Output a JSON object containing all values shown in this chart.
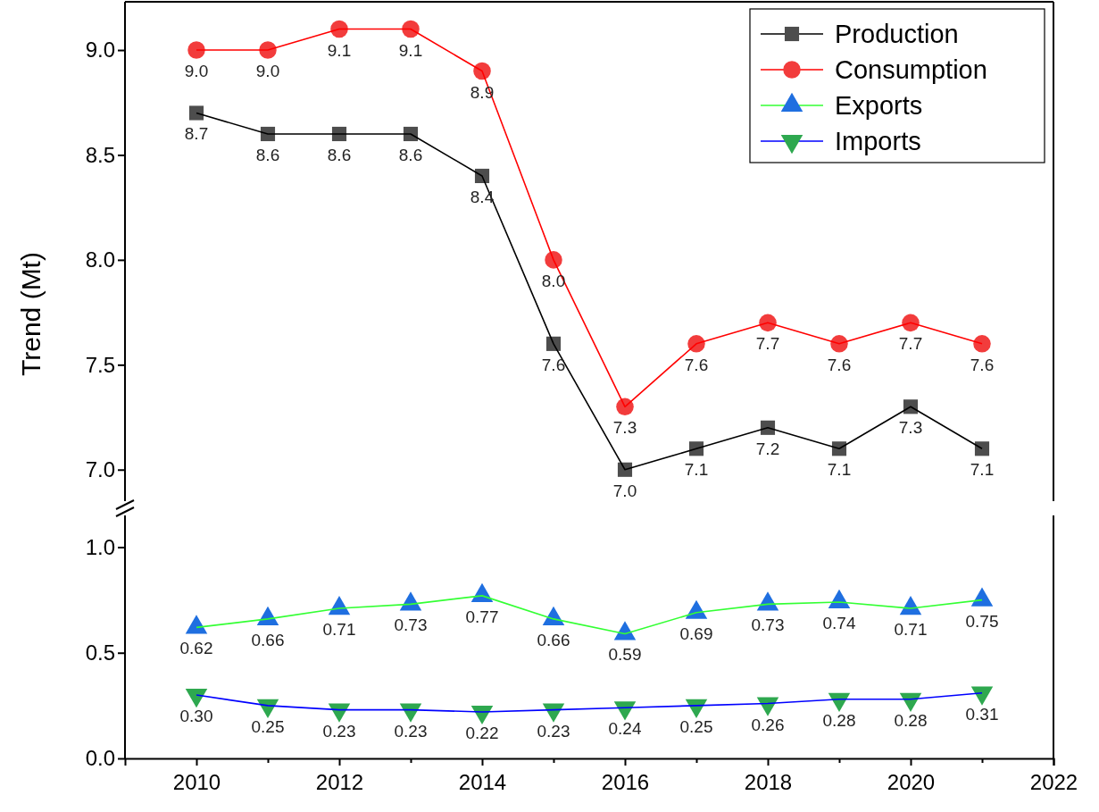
{
  "chart_data": [
    {
      "type": "line",
      "ylabel": "Trend (Mt)",
      "x": [
        2010,
        2011,
        2012,
        2013,
        2014,
        2015,
        2016,
        2017,
        2018,
        2019,
        2020,
        2021
      ],
      "xlim": [
        2009,
        2022
      ],
      "ylim": [
        6.85,
        9.23
      ],
      "yticks": [
        {
          "value": 7,
          "label": "7.0"
        },
        {
          "value": 7.5,
          "label": "7.5"
        },
        {
          "value": 8,
          "label": "8.0"
        },
        {
          "value": 8.5,
          "label": "8.5"
        },
        {
          "value": 9,
          "label": "9.0"
        }
      ],
      "tick_labels": "y",
      "legend": "top right",
      "grid": false,
      "series": [
        {
          "name": "Production",
          "color": "#000000",
          "colors": [
            "#4d4d4d",
            "#4d4d4d",
            "#4d4d4d",
            "#4d4d4d",
            "#4d4d4d",
            "#4d4d4d",
            "#4d4d4d",
            "#4d4d4d",
            "#4d4d4d",
            "#4d4d4d",
            "#4d4d4d",
            "#4d4d4d"
          ],
          "marker": "square",
          "values": [
            8.7,
            8.6,
            8.6,
            8.6,
            8.4,
            7.6,
            7.0,
            7.1,
            7.2,
            7.1,
            7.3,
            7.1
          ],
          "value_labels": [
            "8.7",
            "8.6",
            "8.6",
            "8.6",
            "8.4",
            "7.6",
            "7.0",
            "7.1",
            "7.2",
            "7.1",
            "7.3",
            "7.1"
          ]
        },
        {
          "name": "Consumption",
          "color": "#ff0000",
          "colors": [
            "#f23c3c",
            "#f23c3c",
            "#f23c3c",
            "#f23c3c",
            "#f23c3c",
            "#f23c3c",
            "#f23c3c",
            "#f23c3c",
            "#f23c3c",
            "#f23c3c",
            "#f23c3c",
            "#f23c3c"
          ],
          "marker": "circle",
          "values": [
            9.0,
            9.0,
            9.1,
            9.1,
            8.9,
            8.0,
            7.3,
            7.6,
            7.7,
            7.6,
            7.7,
            7.6
          ],
          "value_labels": [
            "9.0",
            "9.0",
            "9.1",
            "9.1",
            "8.9",
            "8.0",
            "7.3",
            "7.6",
            "7.7",
            "7.6",
            "7.7",
            "7.6"
          ]
        }
      ]
    },
    {
      "type": "line",
      "x": [
        2010,
        2011,
        2012,
        2013,
        2014,
        2015,
        2016,
        2017,
        2018,
        2019,
        2020,
        2021
      ],
      "xlim": [
        2009,
        2022
      ],
      "xticks": [
        2010,
        {
          "value": 2011,
          "label": null
        },
        2012,
        {
          "value": 2013,
          "label": null
        },
        2014,
        {
          "value": 2015,
          "label": null
        },
        2016,
        {
          "value": 2017,
          "label": null
        },
        2018,
        {
          "value": 2019,
          "label": null
        },
        2020,
        {
          "value": 2021,
          "label": null
        },
        2022
      ],
      "ylim": [
        0,
        1.15
      ],
      "yticks": [
        {
          "value": 0,
          "label": "0.0"
        },
        {
          "value": 0.5,
          "label": "0.5"
        },
        {
          "value": 1,
          "label": "1.0"
        }
      ],
      "legend": "top right",
      "grid": false,
      "series": [
        {
          "name": "Exports",
          "color": "#33ff33",
          "colors": [
            "#1f6fe0",
            "#1f6fe0",
            "#1f6fe0",
            "#1f6fe0",
            "#1f6fe0",
            "#1f6fe0",
            "#1f6fe0",
            "#1f6fe0",
            "#1f6fe0",
            "#1f6fe0",
            "#1f6fe0",
            "#1f6fe0"
          ],
          "marker": "triangle",
          "values": [
            0.62,
            0.66,
            0.71,
            0.73,
            0.77,
            0.66,
            0.59,
            0.69,
            0.73,
            0.74,
            0.71,
            0.75
          ],
          "value_labels": [
            "0.62",
            "0.66",
            "0.71",
            "0.73",
            "0.77",
            "0.66",
            "0.59",
            "0.69",
            "0.73",
            "0.74",
            "0.71",
            "0.75"
          ]
        },
        {
          "name": "Imports",
          "color": "#0000ff",
          "colors": [
            "#2ea84f",
            "#2ea84f",
            "#2ea84f",
            "#2ea84f",
            "#2ea84f",
            "#2ea84f",
            "#2ea84f",
            "#2ea84f",
            "#2ea84f",
            "#2ea84f",
            "#2ea84f",
            "#2ea84f"
          ],
          "marker": "triangle-down",
          "values": [
            0.3,
            0.25,
            0.23,
            0.23,
            0.22,
            0.23,
            0.24,
            0.25,
            0.26,
            0.28,
            0.28,
            0.31
          ],
          "value_labels": [
            "0.30",
            "0.25",
            "0.23",
            "0.23",
            "0.22",
            "0.23",
            "0.24",
            "0.25",
            "0.26",
            "0.28",
            "0.28",
            "0.31"
          ]
        }
      ]
    }
  ]
}
